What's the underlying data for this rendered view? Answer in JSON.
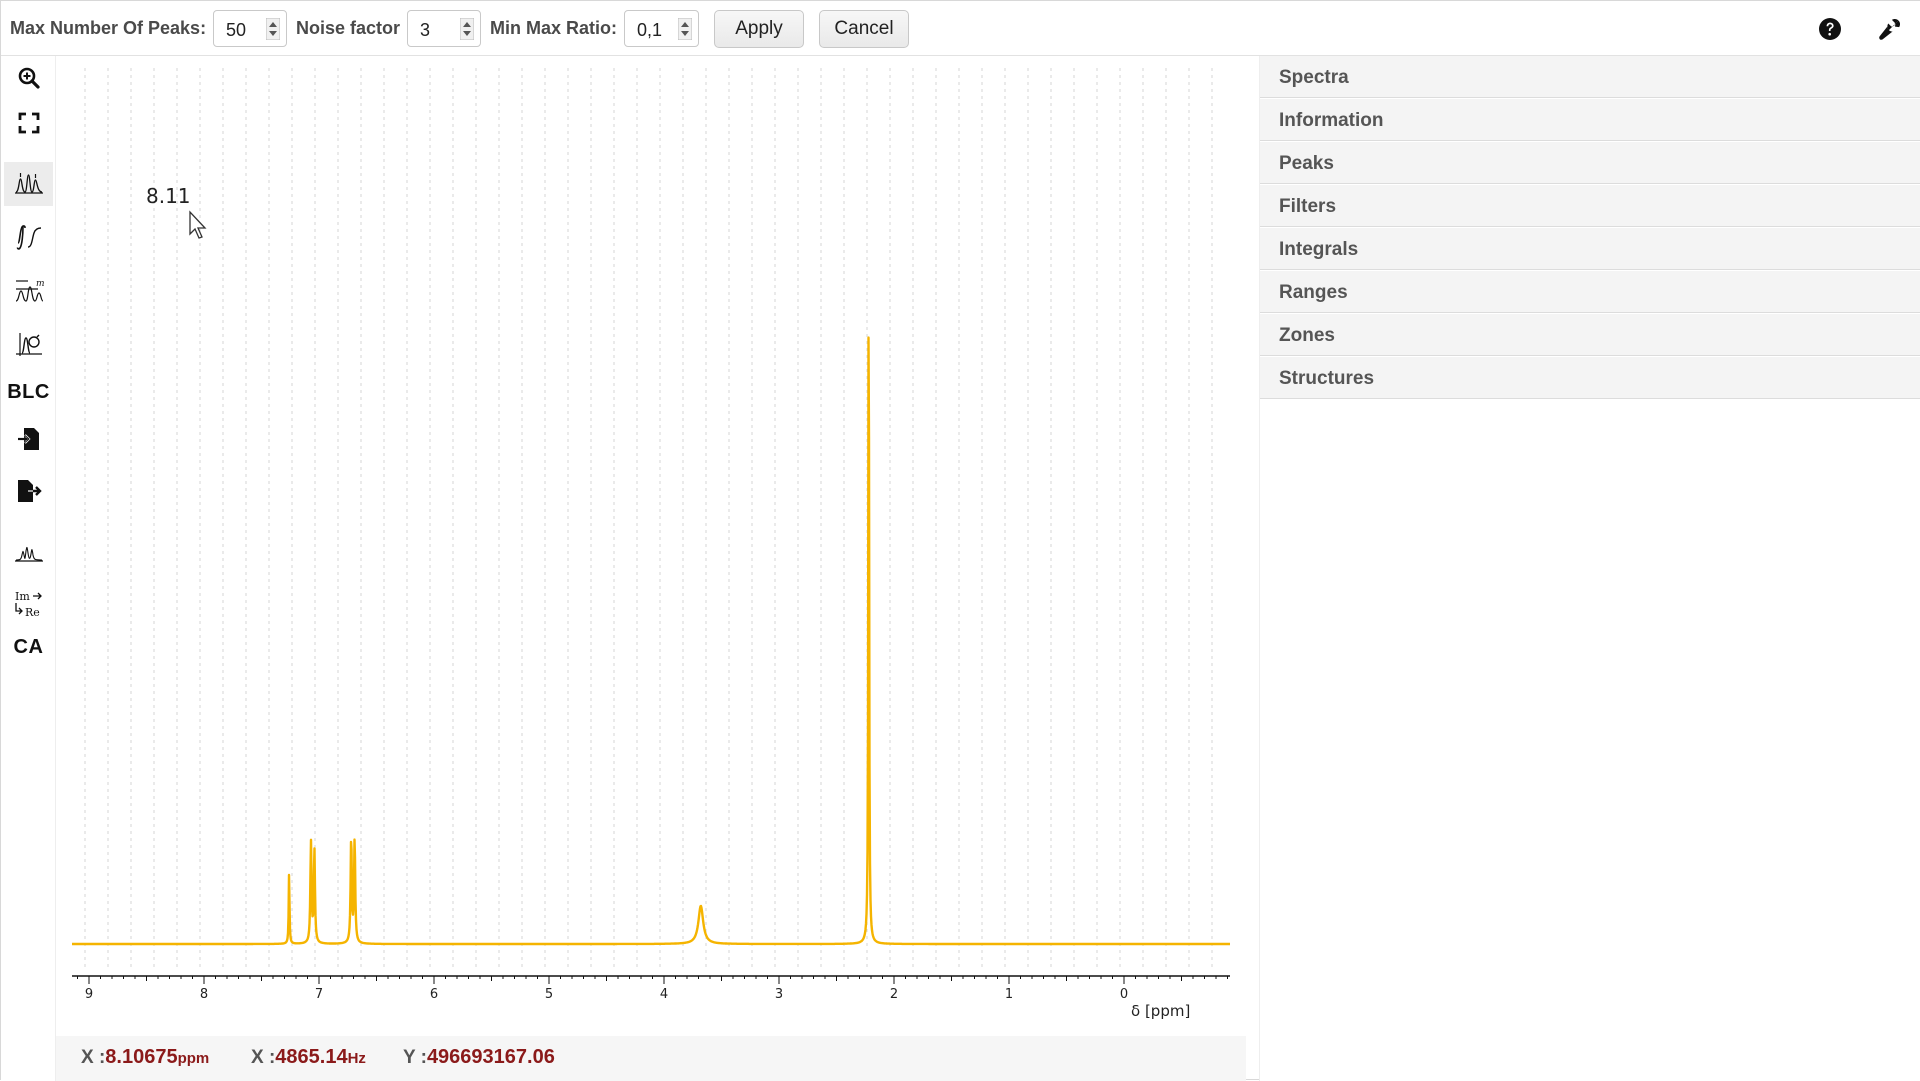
{
  "toolbar": {
    "max_peaks_label": "Max Number Of Peaks:",
    "max_peaks_value": "50",
    "noise_label": "Noise factor",
    "noise_value": "3",
    "minmax_label": "Min Max Ratio:",
    "minmax_value": "0,1",
    "apply_label": "Apply",
    "cancel_label": "Cancel",
    "help_icon": "question-circle-icon",
    "settings_icon": "wrench-icon"
  },
  "left_tools": [
    {
      "name": "zoom-in-icon"
    },
    {
      "name": "fullscreen-icon"
    },
    {
      "name": "peak-picking-icon",
      "active": true
    },
    {
      "name": "integral-icon"
    },
    {
      "name": "multiplet-icon"
    },
    {
      "name": "phase-correction-icon"
    },
    {
      "name": "baseline-correction",
      "text": "BLC"
    },
    {
      "name": "import-icon"
    },
    {
      "name": "export-icon"
    },
    {
      "name": "spectrum-display-icon"
    },
    {
      "name": "real-imaginary-icon"
    },
    {
      "name": "auto-assign",
      "text": "CA"
    }
  ],
  "spectrum": {
    "peak_label": "8.11",
    "axis_label": "δ [ppm]",
    "line_color": "#f5b400"
  },
  "chart_data": {
    "type": "line",
    "xlabel": "δ [ppm]",
    "xlim": [
      9.1,
      -0.9
    ],
    "x_ticks": [
      "9",
      "8",
      "7",
      "6",
      "5",
      "4",
      "3",
      "2",
      "1",
      "0"
    ],
    "grid": "vertical dashed",
    "series": [
      {
        "peaks": [
          {
            "ppm": 7.26,
            "height": 0.1
          },
          {
            "ppm": 7.07,
            "height": 0.14
          },
          {
            "ppm": 7.04,
            "height": 0.13
          },
          {
            "ppm": 6.72,
            "height": 0.148
          },
          {
            "ppm": 6.69,
            "height": 0.145
          },
          {
            "ppm": 3.68,
            "height": 0.053
          },
          {
            "ppm": 2.22,
            "height": 1.0
          }
        ]
      }
    ]
  },
  "status": {
    "x_label": "X :",
    "x_ppm": "8.10675",
    "x_ppm_unit": "ppm",
    "x2_label": "X :",
    "x_hz": "4865.14",
    "x_hz_unit": "Hz",
    "y_label": "Y :",
    "y_value": "496693167.06"
  },
  "panels": [
    "Spectra",
    "Information",
    "Peaks",
    "Filters",
    "Integrals",
    "Ranges",
    "Zones",
    "Structures"
  ]
}
